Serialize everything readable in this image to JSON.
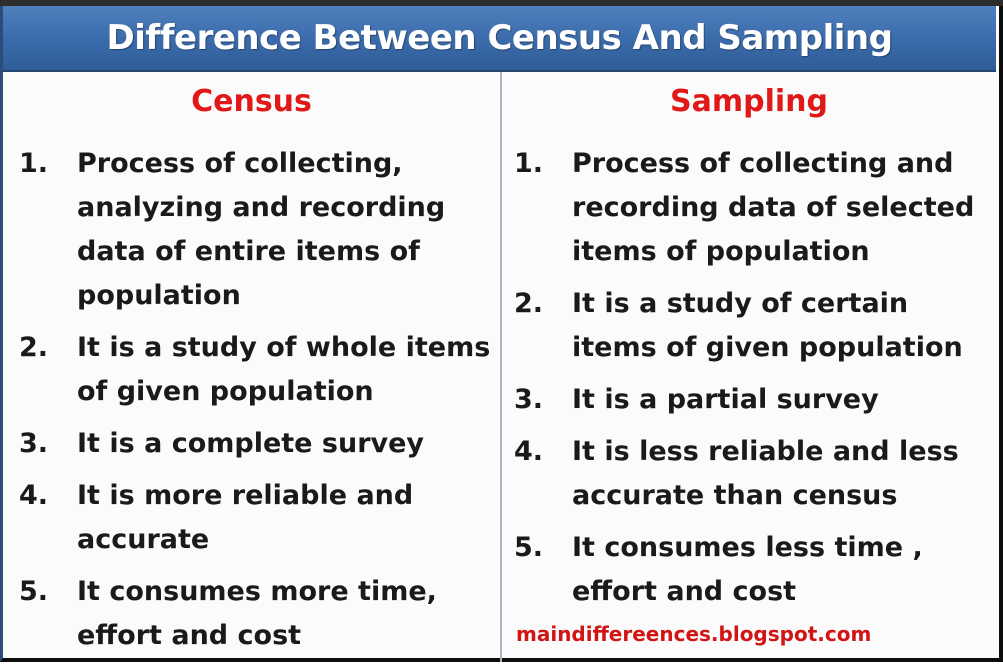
{
  "title": "Difference Between Census And Sampling",
  "columns": [
    {
      "heading": "Census",
      "items": [
        {
          "num": "1.",
          "lines": [
            "Process of collecting,",
            "analyzing and recording",
            "data of entire items of",
            "population"
          ]
        },
        {
          "num": "2.",
          "lines": [
            "It is a study of whole items",
            "of given population"
          ]
        },
        {
          "num": "3.",
          "lines": [
            "It is a complete survey"
          ]
        },
        {
          "num": "4.",
          "lines": [
            "It is more reliable and",
            "accurate"
          ]
        },
        {
          "num": "5.",
          "lines": [
            "It consumes more time,",
            "effort and cost"
          ]
        }
      ]
    },
    {
      "heading": "Sampling",
      "items": [
        {
          "num": "1.",
          "lines": [
            "Process of collecting and",
            "recording data of selected",
            "items of population"
          ]
        },
        {
          "num": "2.",
          "lines": [
            "It is a study of certain",
            "items of given population"
          ]
        },
        {
          "num": "3.",
          "lines": [
            "It is a partial survey"
          ]
        },
        {
          "num": "4.",
          "lines": [
            "It is less reliable and less",
            "accurate than census"
          ]
        },
        {
          "num": "5.",
          "lines": [
            "It consumes less time ,",
            "effort and cost"
          ]
        }
      ]
    }
  ],
  "credit": "maindiffereences.blogspot.com",
  "colors": {
    "title_bar": "#3a6aa9",
    "title_text": "#ffffff",
    "heading_red": "#e01818",
    "body_text": "#1a1a1a"
  }
}
